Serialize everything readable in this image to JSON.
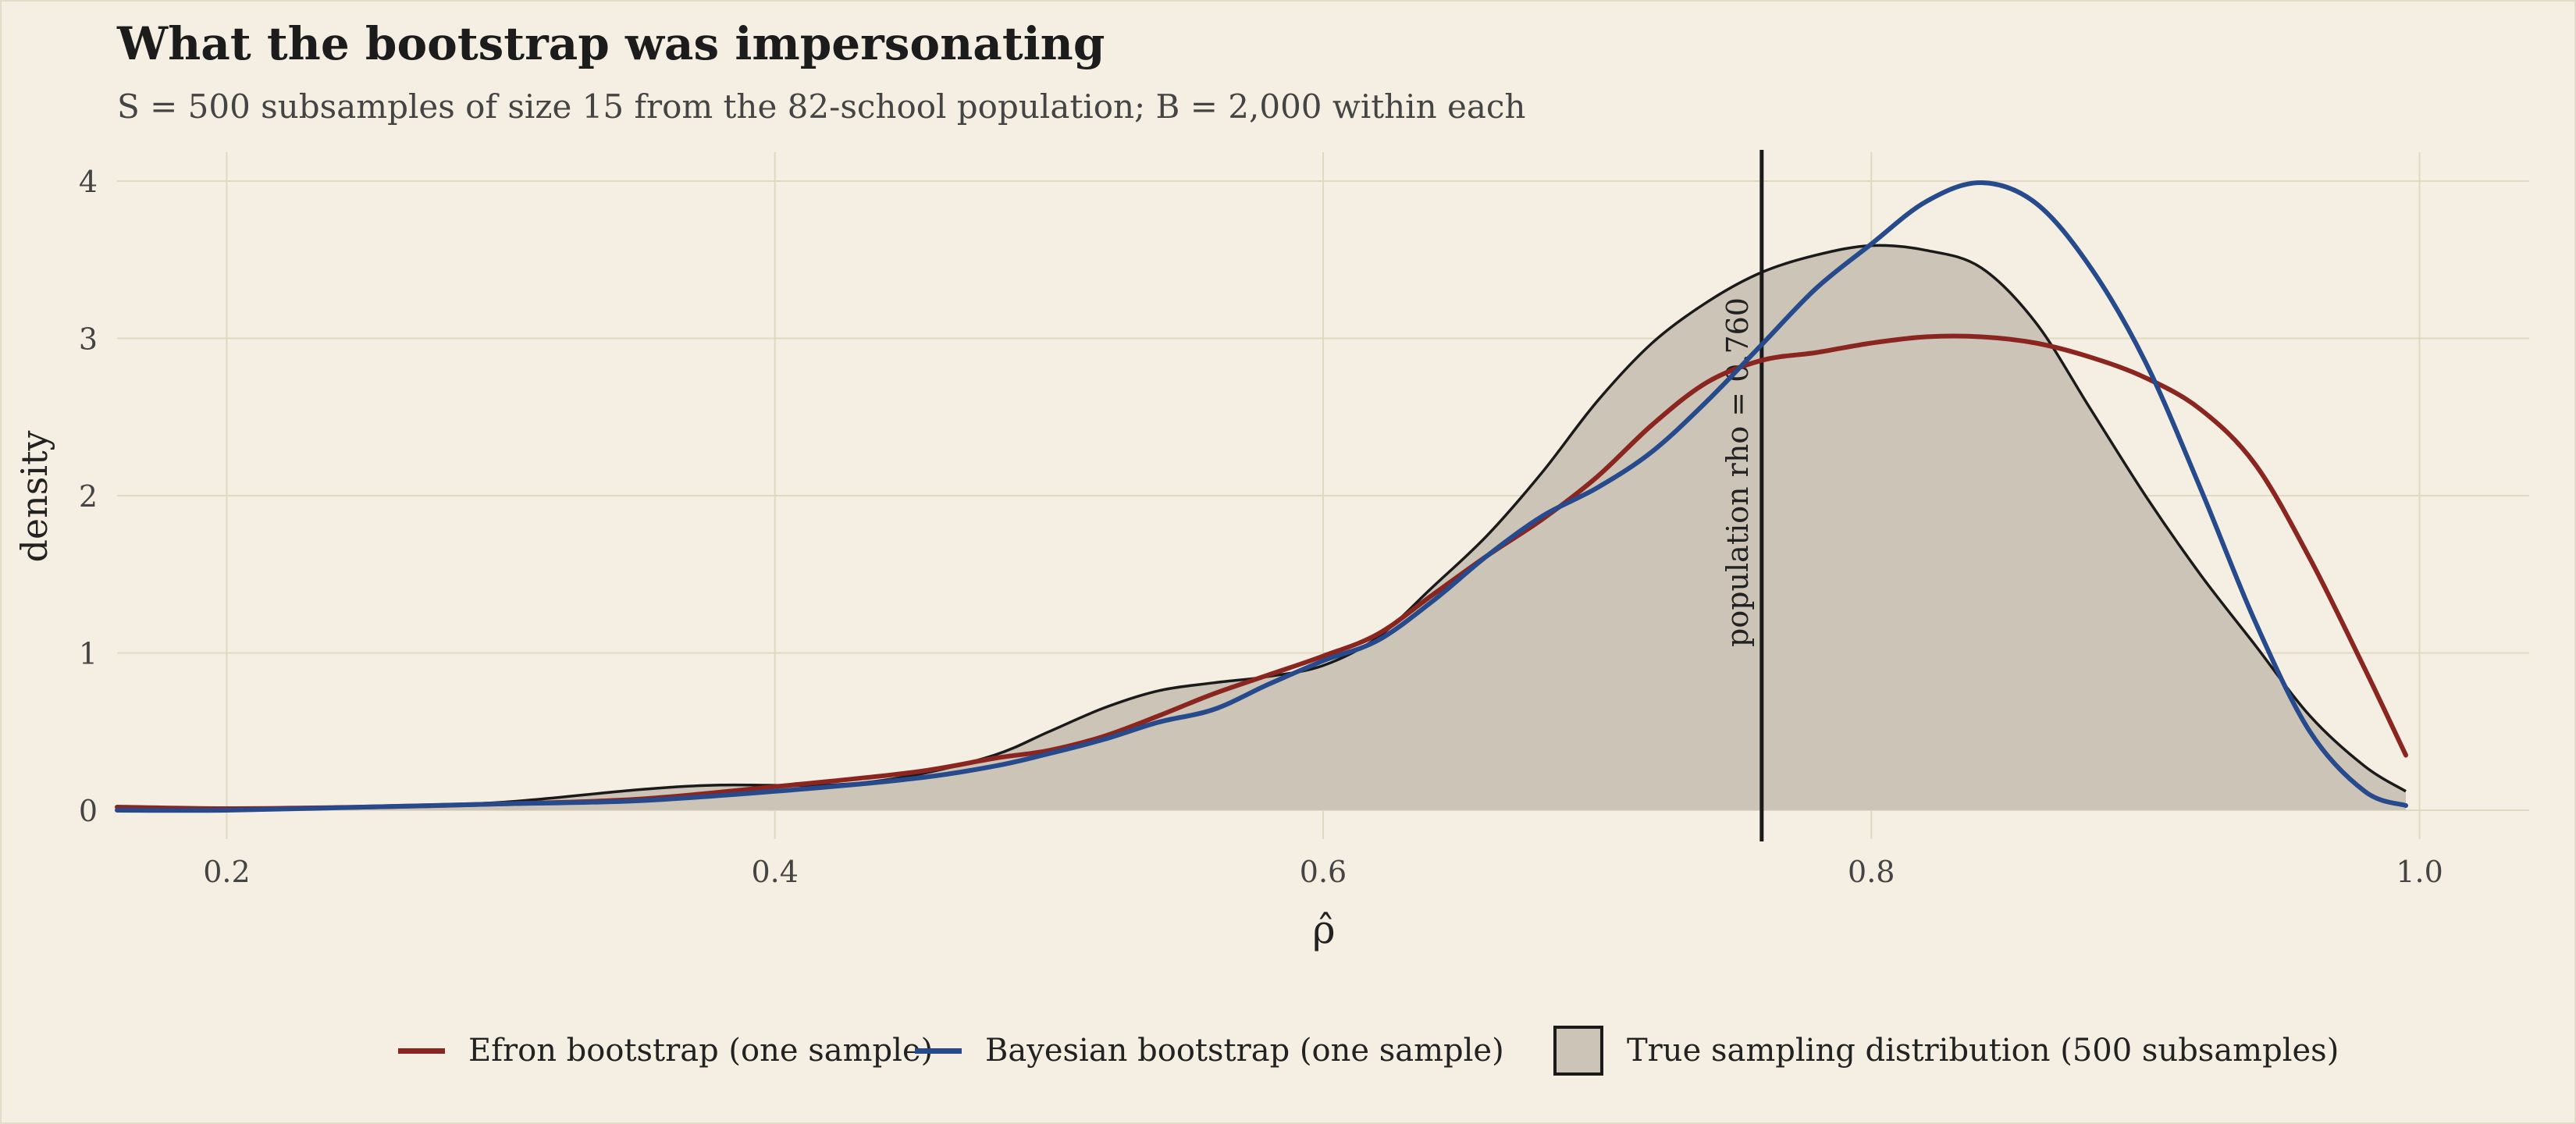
{
  "colors": {
    "efron": "#8b2520",
    "bayes": "#264a8c",
    "true_fill": "#cbc4b7",
    "true_line": "#1a1a1a",
    "background": "#f4efe2",
    "grid": "#e0d8c0"
  },
  "chart_data": {
    "type": "area",
    "title": "What the bootstrap was impersonating",
    "subtitle": "S = 500 subsamples of size 15 from the 82-school population; B = 2,000 within each",
    "xlabel": "ρ̂",
    "ylabel": "density",
    "xlim": [
      0.16,
      1.04
    ],
    "ylim": [
      0,
      4
    ],
    "x_ticks": [
      0.2,
      0.4,
      0.6,
      0.8,
      1.0
    ],
    "x_tick_labels": [
      "0.2",
      "0.4",
      "0.6",
      "0.8",
      "1.0"
    ],
    "y_ticks": [
      0,
      1,
      2,
      3,
      4
    ],
    "y_tick_labels": [
      "0",
      "1",
      "2",
      "3",
      "4"
    ],
    "grid": true,
    "legend_position": "bottom",
    "reference_line": {
      "x": 0.76,
      "label": "population rho = 0.760"
    },
    "series": [
      {
        "name": "True sampling distribution (500 subsamples)",
        "kind": "area",
        "color_key": "true_fill",
        "x": [
          0.16,
          0.2,
          0.25,
          0.3,
          0.35,
          0.38,
          0.42,
          0.45,
          0.48,
          0.5,
          0.52,
          0.54,
          0.56,
          0.58,
          0.6,
          0.62,
          0.64,
          0.66,
          0.68,
          0.7,
          0.72,
          0.74,
          0.76,
          0.78,
          0.8,
          0.82,
          0.84,
          0.86,
          0.88,
          0.9,
          0.92,
          0.94,
          0.96,
          0.98,
          0.995
        ],
        "y": [
          0.01,
          0.01,
          0.02,
          0.05,
          0.13,
          0.16,
          0.16,
          0.22,
          0.35,
          0.5,
          0.65,
          0.76,
          0.81,
          0.85,
          0.92,
          1.1,
          1.42,
          1.75,
          2.15,
          2.6,
          2.97,
          3.23,
          3.42,
          3.53,
          3.59,
          3.56,
          3.45,
          3.1,
          2.55,
          2.0,
          1.5,
          1.05,
          0.6,
          0.28,
          0.12
        ]
      },
      {
        "name": "Efron bootstrap (one sample)",
        "kind": "line",
        "color_key": "efron",
        "x": [
          0.16,
          0.2,
          0.25,
          0.3,
          0.35,
          0.4,
          0.45,
          0.48,
          0.5,
          0.52,
          0.54,
          0.56,
          0.58,
          0.6,
          0.62,
          0.64,
          0.66,
          0.68,
          0.7,
          0.72,
          0.74,
          0.76,
          0.78,
          0.8,
          0.82,
          0.84,
          0.86,
          0.88,
          0.9,
          0.92,
          0.94,
          0.96,
          0.98,
          0.995
        ],
        "y": [
          0.02,
          0.01,
          0.02,
          0.04,
          0.07,
          0.15,
          0.24,
          0.33,
          0.38,
          0.47,
          0.6,
          0.74,
          0.86,
          0.98,
          1.12,
          1.37,
          1.62,
          1.85,
          2.12,
          2.45,
          2.72,
          2.86,
          2.91,
          2.97,
          3.01,
          3.01,
          2.97,
          2.88,
          2.75,
          2.55,
          2.2,
          1.6,
          0.9,
          0.35
        ]
      },
      {
        "name": "Bayesian bootstrap (one sample)",
        "kind": "line",
        "color_key": "bayes",
        "x": [
          0.16,
          0.2,
          0.25,
          0.3,
          0.35,
          0.4,
          0.45,
          0.48,
          0.5,
          0.52,
          0.54,
          0.56,
          0.58,
          0.6,
          0.62,
          0.64,
          0.66,
          0.68,
          0.7,
          0.72,
          0.74,
          0.76,
          0.78,
          0.8,
          0.82,
          0.84,
          0.86,
          0.88,
          0.9,
          0.92,
          0.94,
          0.96,
          0.98,
          0.995
        ],
        "y": [
          0.0,
          0.0,
          0.02,
          0.04,
          0.06,
          0.12,
          0.2,
          0.28,
          0.36,
          0.45,
          0.56,
          0.64,
          0.8,
          0.95,
          1.08,
          1.33,
          1.62,
          1.87,
          2.05,
          2.28,
          2.6,
          2.96,
          3.32,
          3.6,
          3.87,
          3.99,
          3.86,
          3.45,
          2.85,
          2.05,
          1.2,
          0.5,
          0.12,
          0.03
        ]
      }
    ]
  }
}
